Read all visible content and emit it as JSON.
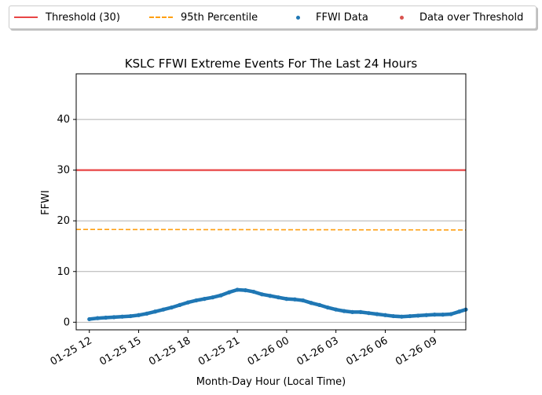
{
  "chart_data": {
    "type": "line",
    "title": "KSLC FFWI Extreme Events For The Last 24 Hours",
    "xlabel": "Month-Day Hour (Local Time)",
    "ylabel": "FFWI",
    "xlim_hours": [
      11.2,
      34.9
    ],
    "ylim": [
      -1.5,
      49
    ],
    "x_ticks": [
      {
        "h": 12,
        "label": "01-25 12"
      },
      {
        "h": 15,
        "label": "01-25 15"
      },
      {
        "h": 18,
        "label": "01-25 18"
      },
      {
        "h": 21,
        "label": "01-25 21"
      },
      {
        "h": 24,
        "label": "01-26 00"
      },
      {
        "h": 27,
        "label": "01-26 03"
      },
      {
        "h": 30,
        "label": "01-26 06"
      },
      {
        "h": 33,
        "label": "01-26 09"
      }
    ],
    "y_ticks": [
      0,
      10,
      20,
      30,
      40
    ],
    "grid": "y",
    "legend_position": "top (outside)",
    "threshold": {
      "name": "Threshold (30)",
      "value": 30,
      "color": "#e84545"
    },
    "percentile": {
      "name": "95th Percentile",
      "start": 18.3,
      "end": 18.2,
      "color": "#ff9f10"
    },
    "series": [
      {
        "name": "FFWI Data",
        "color": "#1f77b4",
        "points": [
          [
            12.0,
            0.6
          ],
          [
            12.5,
            0.8
          ],
          [
            13.0,
            0.9
          ],
          [
            13.5,
            1.0
          ],
          [
            14.0,
            1.1
          ],
          [
            14.5,
            1.2
          ],
          [
            15.0,
            1.4
          ],
          [
            15.5,
            1.7
          ],
          [
            16.0,
            2.1
          ],
          [
            16.5,
            2.5
          ],
          [
            17.0,
            2.9
          ],
          [
            17.5,
            3.4
          ],
          [
            18.0,
            3.9
          ],
          [
            18.5,
            4.3
          ],
          [
            19.0,
            4.6
          ],
          [
            19.5,
            4.9
          ],
          [
            20.0,
            5.3
          ],
          [
            20.5,
            5.9
          ],
          [
            21.0,
            6.4
          ],
          [
            21.5,
            6.3
          ],
          [
            22.0,
            6.0
          ],
          [
            22.5,
            5.5
          ],
          [
            23.0,
            5.2
          ],
          [
            23.5,
            4.9
          ],
          [
            24.0,
            4.6
          ],
          [
            24.5,
            4.5
          ],
          [
            25.0,
            4.3
          ],
          [
            25.5,
            3.8
          ],
          [
            26.0,
            3.4
          ],
          [
            26.5,
            2.9
          ],
          [
            27.0,
            2.5
          ],
          [
            27.5,
            2.2
          ],
          [
            28.0,
            2.0
          ],
          [
            28.5,
            2.0
          ],
          [
            29.0,
            1.8
          ],
          [
            29.5,
            1.6
          ],
          [
            30.0,
            1.4
          ],
          [
            30.5,
            1.2
          ],
          [
            31.0,
            1.1
          ],
          [
            31.5,
            1.2
          ],
          [
            32.0,
            1.3
          ],
          [
            32.5,
            1.4
          ],
          [
            33.0,
            1.5
          ],
          [
            33.5,
            1.5
          ],
          [
            34.0,
            1.6
          ],
          [
            34.5,
            2.1
          ],
          [
            34.9,
            2.5
          ]
        ]
      },
      {
        "name": "Data over Threshold",
        "color": "#d9534f",
        "points": []
      }
    ]
  }
}
